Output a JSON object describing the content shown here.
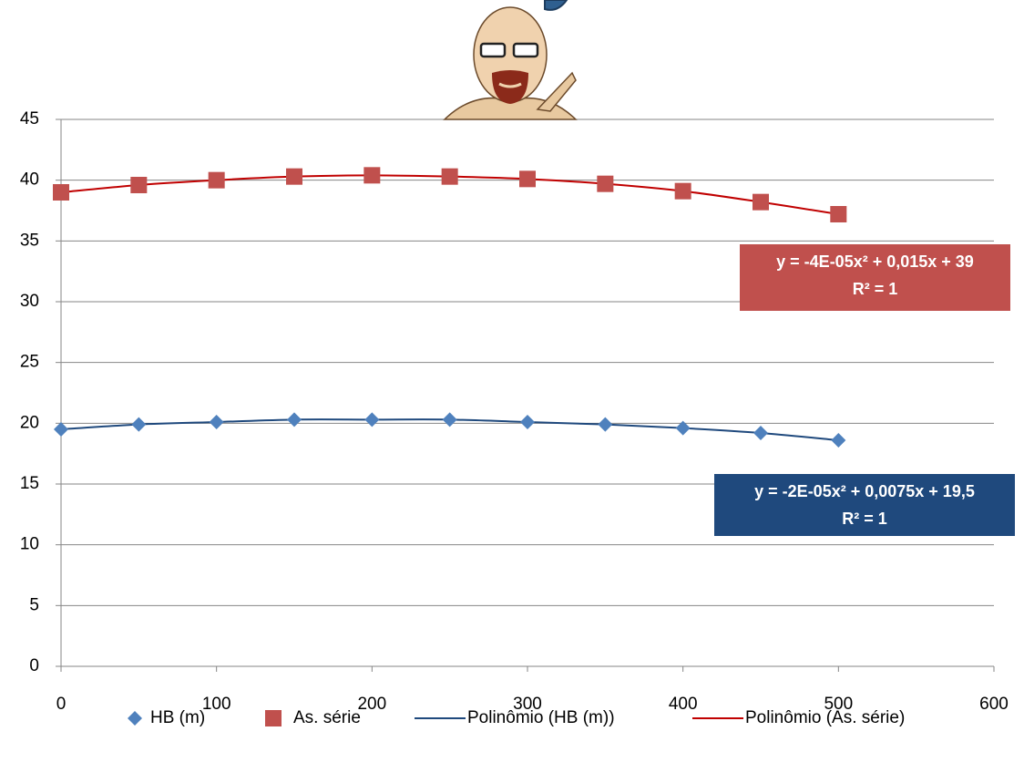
{
  "chart_data": {
    "type": "scatter",
    "x": [
      0,
      50,
      100,
      150,
      200,
      250,
      300,
      350,
      400,
      450,
      500
    ],
    "series": [
      {
        "name": "HB (m)",
        "color": "#4f81bd",
        "marker": "diamond",
        "values": [
          19.5,
          19.9,
          20.1,
          20.3,
          20.3,
          20.3,
          20.1,
          19.9,
          19.6,
          19.2,
          18.6
        ]
      },
      {
        "name": "As. série",
        "color": "#c0504d",
        "marker": "square",
        "values": [
          39.0,
          39.6,
          40.0,
          40.3,
          40.4,
          40.3,
          40.1,
          39.7,
          39.1,
          38.2,
          37.2
        ]
      },
      {
        "name": "Polinômio (HB (m))",
        "color": "#1f497d",
        "marker": "line",
        "values": [
          19.5,
          19.9,
          20.1,
          20.3,
          20.3,
          20.3,
          20.1,
          19.9,
          19.6,
          19.2,
          18.6
        ]
      },
      {
        "name": "Polinômio (As. série)",
        "color": "#c00000",
        "marker": "line",
        "values": [
          39.0,
          39.6,
          40.0,
          40.3,
          40.4,
          40.3,
          40.1,
          39.7,
          39.1,
          38.2,
          37.2
        ]
      }
    ],
    "xlim": [
      0,
      600
    ],
    "xticks": [
      0,
      100,
      200,
      300,
      400,
      500,
      600
    ],
    "ylim": [
      0,
      45
    ],
    "yticks": [
      0,
      5,
      10,
      15,
      20,
      25,
      30,
      35,
      40,
      45
    ],
    "grid": true,
    "legend": "bottom",
    "annotations": [
      {
        "lines": [
          "y = -4E-05x² + 0,015x + 39",
          "R² = 1"
        ],
        "color": "#c0504d"
      },
      {
        "lines": [
          "y = -2E-05x² + 0,0075x + 19,5",
          "R² = 1"
        ],
        "color": "#1f497d"
      }
    ]
  }
}
